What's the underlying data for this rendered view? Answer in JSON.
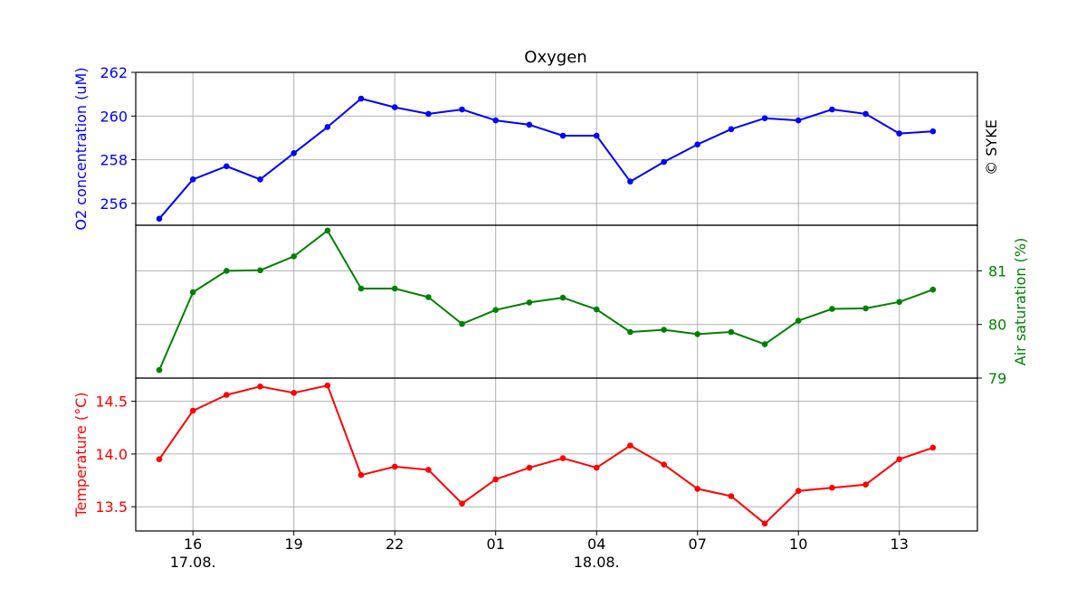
{
  "chart_data": {
    "type": "line",
    "title": "Oxygen",
    "copyright": "© SYKE",
    "x_ticks": [
      "16",
      "19",
      "22",
      "01",
      "04",
      "07",
      "10",
      "13"
    ],
    "date_labels": [
      {
        "after_tick": "16",
        "text": "17.08."
      },
      {
        "after_tick": "04",
        "text": "18.08."
      }
    ],
    "x": [
      "15",
      "16",
      "17",
      "18",
      "19",
      "20",
      "21",
      "22",
      "23",
      "00",
      "01",
      "02",
      "03",
      "04",
      "05",
      "06",
      "07",
      "08",
      "09",
      "10",
      "11",
      "12",
      "13",
      "14"
    ],
    "grid": true,
    "panels": [
      {
        "name": "oxygen",
        "ylabel": "O2 concentration (uM)",
        "label_side": "left",
        "color": "#0000ff",
        "ylim": [
          255,
          262
        ],
        "yticks": [
          "256",
          "258",
          "260",
          "262"
        ],
        "values": [
          255.3,
          257.1,
          257.7,
          257.1,
          258.3,
          259.5,
          260.8,
          260.4,
          260.1,
          260.3,
          259.8,
          259.6,
          259.1,
          259.1,
          257.0,
          257.9,
          258.7,
          259.4,
          259.9,
          259.8,
          260.3,
          260.1,
          259.2,
          259.3
        ]
      },
      {
        "name": "saturation",
        "ylabel": "Air saturation (%)",
        "label_side": "right",
        "color": "#008000",
        "ylim": [
          79,
          81.85
        ],
        "yticks": [
          "79",
          "80",
          "81"
        ],
        "values": [
          79.15,
          80.6,
          81.0,
          81.01,
          81.27,
          81.75,
          80.67,
          80.67,
          80.51,
          80.01,
          80.27,
          80.41,
          80.5,
          80.28,
          79.86,
          79.9,
          79.82,
          79.86,
          79.63,
          80.07,
          80.29,
          80.3,
          80.42,
          80.65
        ]
      },
      {
        "name": "temperature",
        "ylabel": "Temperature (°C)",
        "label_side": "left",
        "color": "#ff0000",
        "ylim": [
          13.27,
          14.72
        ],
        "yticks": [
          "13.5",
          "14.0",
          "14.5"
        ],
        "values": [
          13.95,
          14.41,
          14.56,
          14.64,
          14.58,
          14.65,
          13.8,
          13.88,
          13.85,
          13.53,
          13.76,
          13.87,
          13.96,
          13.87,
          14.08,
          13.9,
          13.67,
          13.6,
          13.34,
          13.65,
          13.68,
          13.71,
          13.95,
          14.06
        ]
      }
    ]
  }
}
